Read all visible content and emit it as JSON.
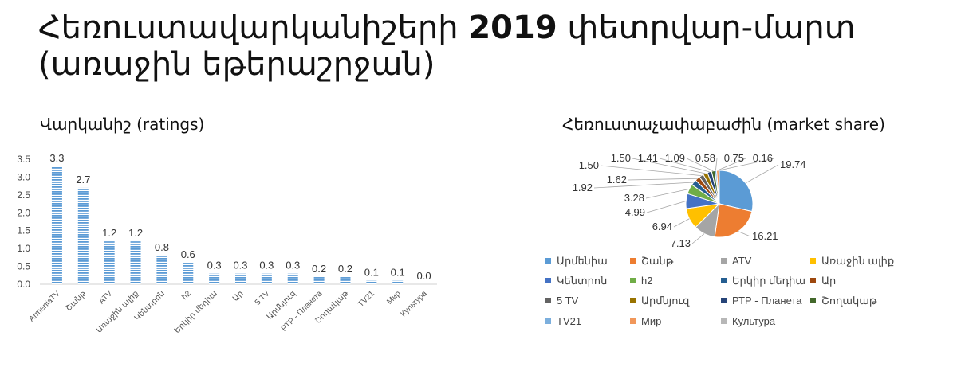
{
  "page": {
    "title_part1": "Հեռուստավարկանիշերի ",
    "title_bold": "2019",
    "title_part2": " փետրվար-մարտ",
    "title_line2": "(առաջին եթերաշրջան)"
  },
  "chart_data": [
    {
      "type": "bar",
      "title": "Վարկանիշ (ratings)",
      "categories": [
        "ArmeniaTV",
        "Շանթ",
        "ATV",
        "Առաջին ալիք",
        "Կենտրոն",
        "h2",
        "Երկիր մեդիա",
        "Ար",
        "5 TV",
        "Արմնյուզ",
        "РТР - Планета",
        "Շողակաթ",
        "TV21",
        "Мир",
        "Культура"
      ],
      "values": [
        3.3,
        2.7,
        1.2,
        1.2,
        0.8,
        0.6,
        0.3,
        0.3,
        0.3,
        0.3,
        0.2,
        0.2,
        0.1,
        0.1,
        0.0
      ],
      "value_labels": [
        "3.3",
        "2.7",
        "1.2",
        "1.2",
        "0.8",
        "0.6",
        "0.3",
        "0.3",
        "0.3",
        "0.3",
        "0.2",
        "0.2",
        "0.1",
        "0.1",
        "0.0"
      ],
      "ylim": [
        0,
        3.5
      ],
      "yticks": [
        "0.0",
        "0.5",
        "1.0",
        "1.5",
        "2.0",
        "2.5",
        "3.0",
        "3.5"
      ],
      "bar_color": "#5b9bd5",
      "grid": false
    },
    {
      "type": "pie",
      "title": "Հեռուստաչափաբաժին (market share)",
      "labels": [
        "Արմենիա",
        "Շանթ",
        "ATV",
        "Առաջին ալիք",
        "Կենտրոն",
        "h2",
        "Երկիր մեդիա",
        "Ար",
        "5 TV",
        "Արմնյուզ",
        "РТР - Планета",
        "Շողակաթ",
        "TV21",
        "Мир",
        "Культура"
      ],
      "values": [
        19.74,
        16.21,
        7.13,
        6.94,
        4.99,
        3.28,
        1.92,
        1.62,
        1.5,
        1.5,
        1.41,
        1.09,
        0.58,
        0.75,
        0.16
      ],
      "value_labels": [
        "19.74",
        "16.21",
        "7.13",
        "6.94",
        "4.99",
        "3.28",
        "1.92",
        "1.62",
        "1.50",
        "1.50",
        "1.41",
        "1.09",
        "0.58",
        "0.75",
        "0.16"
      ],
      "colors": [
        "#5b9bd5",
        "#ed7d31",
        "#a5a5a5",
        "#ffc000",
        "#4472c4",
        "#70ad47",
        "#255e91",
        "#9e480e",
        "#636363",
        "#997300",
        "#264478",
        "#43682b",
        "#7cafdd",
        "#f1975a",
        "#b7b7b7"
      ],
      "legend_position": "bottom"
    }
  ]
}
